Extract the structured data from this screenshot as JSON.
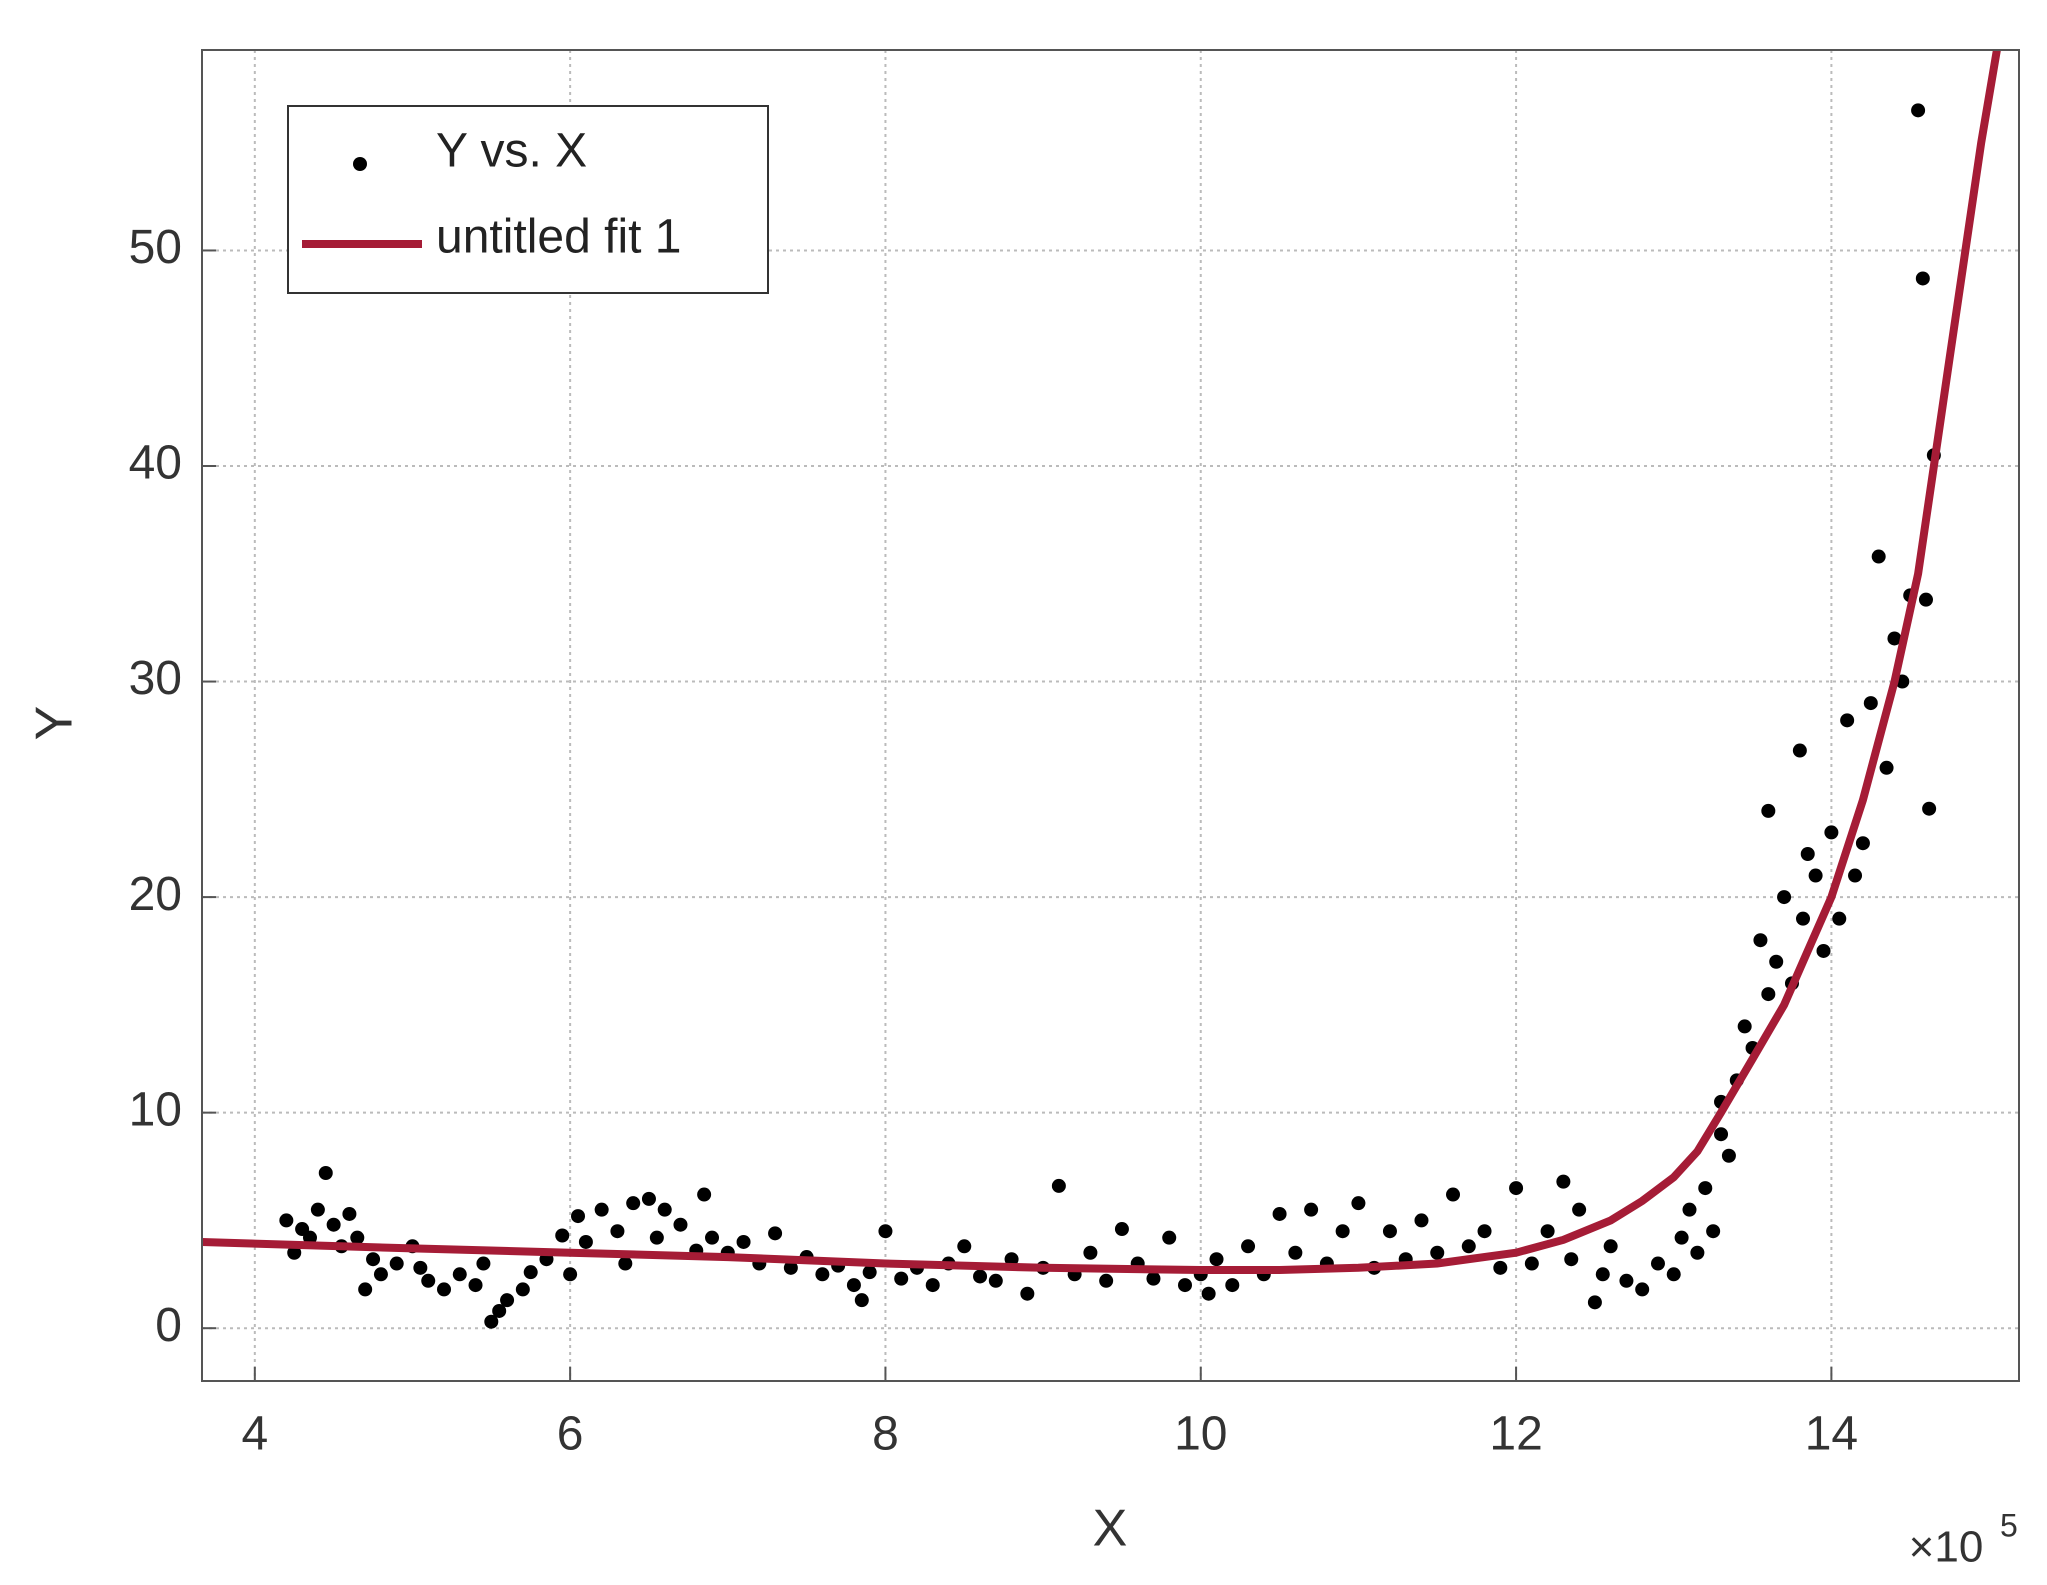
{
  "chart_data": {
    "type": "scatter",
    "x_label": "X",
    "y_label": "Y",
    "x_multiplier": "×10",
    "x_multiplier_exp": "5",
    "xlim": [
      3.665,
      15.19
    ],
    "ylim": [
      -2.45,
      59.3
    ],
    "xticks": [
      4,
      6,
      8,
      10,
      12,
      14
    ],
    "yticks": [
      0,
      10,
      20,
      30,
      40,
      50
    ],
    "grid": true,
    "legend": "upper left",
    "series": [
      {
        "name": "Y vs. X",
        "type": "scatter",
        "color": "#000000",
        "x": [
          4.2,
          4.25,
          4.3,
          4.35,
          4.4,
          4.45,
          4.5,
          4.55,
          4.6,
          4.65,
          4.7,
          4.75,
          4.8,
          4.9,
          5.0,
          5.05,
          5.1,
          5.2,
          5.3,
          5.4,
          5.45,
          5.5,
          5.55,
          5.6,
          5.7,
          5.75,
          5.85,
          5.95,
          6.0,
          6.05,
          6.1,
          6.2,
          6.3,
          6.35,
          6.4,
          6.5,
          6.55,
          6.6,
          6.7,
          6.8,
          6.85,
          6.9,
          7.0,
          7.1,
          7.2,
          7.3,
          7.4,
          7.5,
          7.6,
          7.7,
          7.8,
          7.85,
          7.9,
          8.0,
          8.1,
          8.2,
          8.3,
          8.4,
          8.5,
          8.6,
          8.7,
          8.8,
          8.9,
          9.0,
          9.1,
          9.2,
          9.3,
          9.4,
          9.5,
          9.6,
          9.7,
          9.8,
          9.9,
          10.0,
          10.05,
          10.1,
          10.2,
          10.3,
          10.4,
          10.5,
          10.6,
          10.7,
          10.8,
          10.9,
          11.0,
          11.1,
          11.2,
          11.3,
          11.4,
          11.5,
          11.6,
          11.7,
          11.8,
          11.9,
          12.0,
          12.1,
          12.2,
          12.3,
          12.35,
          12.4,
          12.5,
          12.55,
          12.6,
          12.7,
          12.8,
          12.9,
          13.0,
          13.05,
          13.1,
          13.15,
          13.2,
          13.25,
          13.3,
          13.3,
          13.35,
          13.4,
          13.45,
          13.5,
          13.55,
          13.6,
          13.6,
          13.65,
          13.7,
          13.75,
          13.8,
          13.82,
          13.85,
          13.9,
          13.95,
          14.0,
          14.05,
          14.1,
          14.15,
          14.2,
          14.25,
          14.3,
          14.35,
          14.4,
          14.45,
          14.5,
          14.55,
          14.58,
          14.6,
          14.62,
          14.65
        ],
        "y": [
          5.0,
          3.5,
          4.6,
          4.2,
          5.5,
          7.2,
          4.8,
          3.8,
          5.3,
          4.2,
          1.8,
          3.2,
          2.5,
          3.0,
          3.8,
          2.8,
          2.2,
          1.8,
          2.5,
          2.0,
          3.0,
          0.3,
          0.8,
          1.3,
          1.8,
          2.6,
          3.2,
          4.3,
          2.5,
          5.2,
          4.0,
          5.5,
          4.5,
          3.0,
          5.8,
          6.0,
          4.2,
          5.5,
          4.8,
          3.6,
          6.2,
          4.2,
          3.5,
          4.0,
          3.0,
          4.4,
          2.8,
          3.3,
          2.5,
          2.9,
          2.0,
          1.3,
          2.6,
          4.5,
          2.3,
          2.8,
          2.0,
          3.0,
          3.8,
          2.4,
          2.2,
          3.2,
          1.6,
          2.8,
          6.6,
          2.5,
          3.5,
          2.2,
          4.6,
          3.0,
          2.3,
          4.2,
          2.0,
          2.5,
          1.6,
          3.2,
          2.0,
          3.8,
          2.5,
          5.3,
          3.5,
          5.5,
          3.0,
          4.5,
          5.8,
          2.8,
          4.5,
          3.2,
          5.0,
          3.5,
          6.2,
          3.8,
          4.5,
          2.8,
          6.5,
          3.0,
          4.5,
          6.8,
          3.2,
          5.5,
          1.2,
          2.5,
          3.8,
          2.2,
          1.8,
          3.0,
          2.5,
          4.2,
          5.5,
          3.5,
          6.5,
          4.5,
          9.0,
          10.5,
          8.0,
          11.5,
          14.0,
          13.0,
          18.0,
          24.0,
          15.5,
          17.0,
          20.0,
          16.0,
          26.8,
          19.0,
          22.0,
          21.0,
          17.5,
          23.0,
          19.0,
          28.2,
          21.0,
          22.5,
          29.0,
          35.8,
          26.0,
          32.0,
          30.0,
          34.0,
          56.5,
          48.7,
          33.8,
          24.1,
          40.5
        ]
      },
      {
        "name": "untitled fit 1",
        "type": "line",
        "color": "#a51c36",
        "x": [
          3.665,
          5,
          6,
          7,
          8,
          9,
          10,
          10.5,
          11,
          11.5,
          12,
          12.3,
          12.6,
          12.8,
          13,
          13.15,
          13.3,
          13.5,
          13.7,
          13.85,
          14,
          14.2,
          14.4,
          14.55,
          14.65,
          14.75,
          14.85,
          14.95,
          15.05
        ],
        "y": [
          4.0,
          3.7,
          3.5,
          3.3,
          3.0,
          2.8,
          2.7,
          2.7,
          2.8,
          3.0,
          3.5,
          4.1,
          5.0,
          5.9,
          7.0,
          8.2,
          10.0,
          12.5,
          15.0,
          17.5,
          20.0,
          24.5,
          30.0,
          35.0,
          40.0,
          45.0,
          50.0,
          55.0,
          59.3
        ]
      }
    ]
  }
}
